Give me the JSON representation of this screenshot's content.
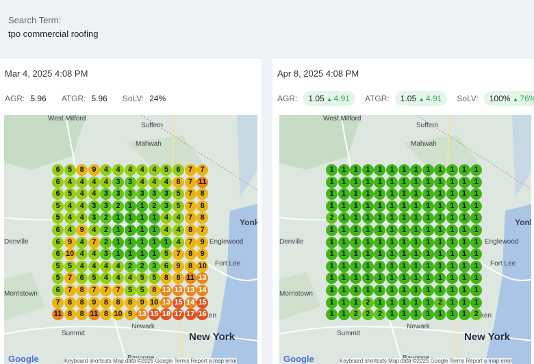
{
  "search": {
    "label": "Search Term:",
    "value": "tpo commercial roofing"
  },
  "panels": [
    {
      "date": "Mar 4, 2025 4:08 PM",
      "metrics": [
        {
          "label": "AGR:",
          "value": "5.96"
        },
        {
          "label": "ATGR:",
          "value": "5.96"
        },
        {
          "label": "SoLV:",
          "value": "24%"
        }
      ],
      "grid": [
        [
          6,
          5,
          8,
          9,
          4,
          4,
          4,
          4,
          4,
          5,
          6,
          7,
          7
        ],
        [
          6,
          4,
          4,
          4,
          4,
          3,
          3,
          4,
          4,
          4,
          8,
          7,
          11
        ],
        [
          6,
          5,
          4,
          4,
          3,
          3,
          3,
          3,
          3,
          3,
          5,
          7,
          8
        ],
        [
          5,
          4,
          4,
          3,
          3,
          2,
          1,
          1,
          2,
          3,
          5,
          7,
          8
        ],
        [
          5,
          4,
          4,
          3,
          2,
          1,
          1,
          1,
          1,
          4,
          4,
          7,
          8
        ],
        [
          6,
          4,
          9,
          4,
          2,
          1,
          1,
          1,
          1,
          4,
          4,
          8,
          7
        ],
        [
          6,
          9,
          4,
          7,
          2,
          1,
          1,
          1,
          1,
          1,
          4,
          7,
          9
        ],
        [
          6,
          10,
          4,
          4,
          3,
          1,
          1,
          1,
          1,
          5,
          7,
          8,
          9
        ],
        [
          5,
          5,
          4,
          4,
          4,
          4,
          2,
          2,
          3,
          6,
          9,
          8,
          10
        ],
        [
          5,
          7,
          6,
          5,
          4,
          4,
          4,
          5,
          5,
          8,
          8,
          11,
          13
        ],
        [
          6,
          7,
          8,
          7,
          7,
          7,
          5,
          5,
          8,
          13,
          13,
          13,
          14
        ],
        [
          7,
          8,
          8,
          9,
          8,
          8,
          8,
          9,
          10,
          13,
          15,
          14,
          15
        ],
        [
          11,
          8,
          8,
          11,
          8,
          10,
          9,
          13,
          15,
          18,
          17,
          17,
          16
        ]
      ],
      "map_labels": [
        "West Milford",
        "Suffern",
        "Mahwah",
        "Denville",
        "Englewood",
        "Fort Lee",
        "Morristown",
        "Hoboken",
        "Newark",
        "New York",
        "Summit",
        "Bayonne",
        "Yonk"
      ],
      "attribution": "Keyboard shortcuts   Map data ©2025 Google   Terms   Report a map error",
      "google": "Google"
    },
    {
      "date": "Apr 8, 2025 4:08 PM",
      "metrics": [
        {
          "label": "AGR:",
          "value": "1.05",
          "delta": "4.91"
        },
        {
          "label": "ATGR:",
          "value": "1.05",
          "delta": "4.91"
        },
        {
          "label": "SoLV:",
          "value": "100%",
          "delta": "76%"
        }
      ],
      "grid": [
        [
          1,
          1,
          1,
          1,
          1,
          1,
          1,
          1,
          1,
          1,
          1,
          1,
          1
        ],
        [
          1,
          1,
          1,
          1,
          1,
          1,
          1,
          1,
          1,
          1,
          1,
          1,
          1
        ],
        [
          1,
          1,
          1,
          1,
          1,
          1,
          1,
          1,
          1,
          1,
          1,
          1,
          1
        ],
        [
          1,
          1,
          1,
          1,
          1,
          1,
          1,
          1,
          1,
          1,
          1,
          1,
          1
        ],
        [
          2,
          1,
          1,
          1,
          1,
          1,
          1,
          1,
          1,
          1,
          1,
          1,
          1
        ],
        [
          1,
          1,
          1,
          1,
          1,
          1,
          1,
          1,
          1,
          1,
          1,
          1,
          1
        ],
        [
          1,
          1,
          1,
          1,
          1,
          1,
          1,
          1,
          1,
          1,
          1,
          1,
          1
        ],
        [
          1,
          1,
          1,
          1,
          1,
          1,
          1,
          1,
          1,
          1,
          1,
          1,
          1
        ],
        [
          1,
          1,
          1,
          1,
          1,
          1,
          1,
          1,
          1,
          1,
          1,
          1,
          1
        ],
        [
          1,
          1,
          1,
          1,
          1,
          1,
          1,
          1,
          1,
          1,
          1,
          1,
          1
        ],
        [
          1,
          1,
          1,
          1,
          1,
          1,
          1,
          1,
          1,
          1,
          1,
          1,
          1
        ],
        [
          1,
          1,
          1,
          2,
          1,
          1,
          1,
          1,
          1,
          2,
          1,
          1,
          1
        ],
        [
          1,
          1,
          2,
          2,
          2,
          1,
          1,
          1,
          1,
          1,
          1,
          1,
          2
        ]
      ],
      "map_labels": [
        "West Milford",
        "Suffern",
        "Mahwah",
        "Denville",
        "Englewood",
        "Fort Lee",
        "Morristown",
        "Hoboken",
        "Newark",
        "New York",
        "Summit",
        "Bayonne",
        "Yonk"
      ],
      "attribution": "Keyboard shortcuts   Map data ©2025 Google   Terms   Report a map error",
      "google": "Google"
    }
  ],
  "colors": {
    "rank_1": "#3fb518",
    "rank_2_3": "#5fc41c",
    "rank_4_6": "#95cc16",
    "rank_7_10": "#eab512",
    "rank_11_14": "#e8871a",
    "rank_15_plus": "#e0541e",
    "delta_green": "#2eaa4f"
  }
}
